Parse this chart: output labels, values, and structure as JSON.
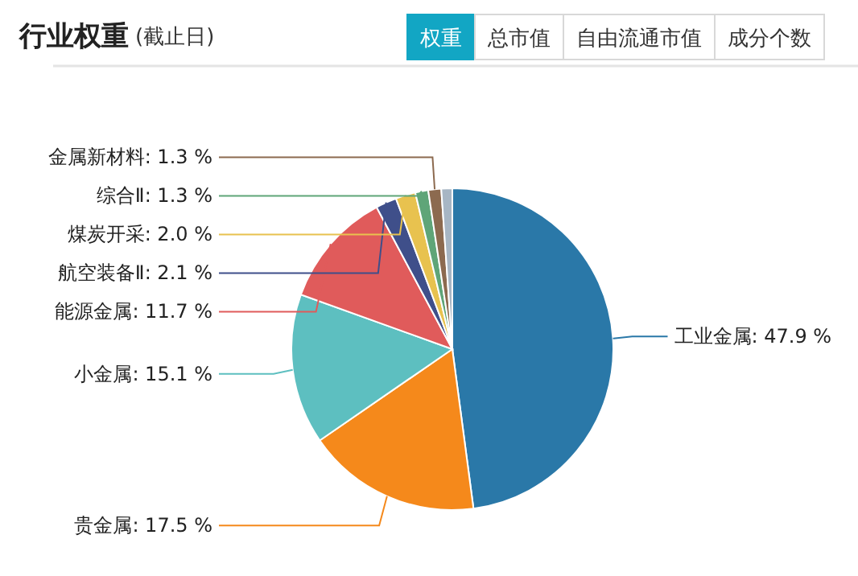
{
  "chart_data": {
    "type": "pie",
    "title": "行业权重",
    "subtitle": "(截止日)",
    "annotations": [
      "权重",
      "总市值",
      "自由流通市值",
      "成分个数"
    ],
    "categories": [
      "工业金属",
      "贵金属",
      "小金属",
      "能源金属",
      "航空装备Ⅱ",
      "煤炭开采",
      "综合Ⅱ",
      "金属新材料",
      null
    ],
    "values": [
      47.9,
      17.5,
      15.1,
      11.7,
      2.1,
      2.0,
      1.3,
      1.3,
      1.1
    ],
    "value_labels": [
      "47.9 %",
      "17.5 %",
      "15.1 %",
      "11.7 %",
      "2.1 %",
      "2.0 %",
      "1.3 %",
      "1.3 %",
      null
    ],
    "colors": [
      "#2a78a8",
      "#f5891b",
      "#5dbfc0",
      "#e05b5b",
      "#3f4f8a",
      "#e8c24f",
      "#5fa578",
      "#8c6a4f",
      "#a7b6c4"
    ]
  }
}
